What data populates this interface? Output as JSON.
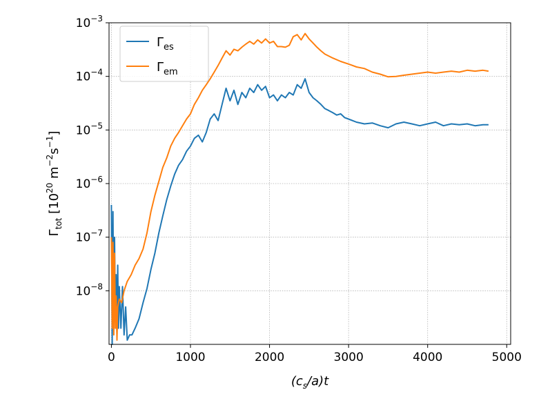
{
  "chart_data": {
    "type": "line",
    "title": "",
    "xlabel": {
      "pre": "(c",
      "sub": "s",
      "post": "/a)t"
    },
    "ylabel": {
      "base": "Γ",
      "sub": "tot",
      "unit_pre": " [10",
      "unit_exp": "20",
      "unit_mid1": " m",
      "unit_exp2": "−2",
      "unit_mid2": "s",
      "unit_exp3": "−1",
      "unit_post": "]"
    },
    "xlim": [
      -30,
      5050
    ],
    "ylim": [
      1e-09,
      0.001
    ],
    "yscale": "log",
    "grid": true,
    "legend_position": "top-left",
    "x_ticks": [
      0,
      1000,
      2000,
      3000,
      4000,
      5000
    ],
    "x_tick_labels": [
      "0",
      "1000",
      "2000",
      "3000",
      "4000",
      "5000"
    ],
    "y_ticks": [
      1e-08,
      1e-07,
      1e-06,
      1e-05,
      0.0001,
      0.001
    ],
    "y_tick_labels": [
      {
        "base": "10",
        "exp": "−8"
      },
      {
        "base": "10",
        "exp": "−7"
      },
      {
        "base": "10",
        "exp": "−6"
      },
      {
        "base": "10",
        "exp": "−5"
      },
      {
        "base": "10",
        "exp": "−4"
      },
      {
        "base": "10",
        "exp": "−3"
      }
    ],
    "series": [
      {
        "name": {
          "base": "Γ",
          "sub": "es"
        },
        "color": "#1f77b4",
        "x": [
          0,
          10,
          20,
          30,
          40,
          50,
          60,
          70,
          80,
          90,
          100,
          120,
          140,
          160,
          180,
          200,
          230,
          260,
          300,
          350,
          400,
          450,
          500,
          550,
          600,
          650,
          700,
          750,
          800,
          850,
          900,
          950,
          1000,
          1050,
          1100,
          1150,
          1200,
          1250,
          1300,
          1350,
          1400,
          1450,
          1500,
          1550,
          1600,
          1650,
          1700,
          1750,
          1800,
          1850,
          1900,
          1950,
          2000,
          2050,
          2100,
          2150,
          2200,
          2250,
          2300,
          2350,
          2400,
          2450,
          2500,
          2550,
          2600,
          2650,
          2700,
          2750,
          2800,
          2850,
          2900,
          2950,
          3000,
          3100,
          3200,
          3300,
          3400,
          3500,
          3600,
          3700,
          3800,
          3900,
          4000,
          4100,
          4200,
          4300,
          4400,
          4500,
          4600,
          4700,
          4770
        ],
        "y": [
          4e-07,
          1e-09,
          3e-07,
          2e-09,
          1e-07,
          3e-09,
          2e-08,
          1.5e-09,
          3e-08,
          2e-09,
          1.2e-08,
          2e-09,
          1.2e-08,
          1.5e-09,
          5e-09,
          1.2e-09,
          1.5e-09,
          1.5e-09,
          2e-09,
          3e-09,
          6e-09,
          1.1e-08,
          2.5e-08,
          5e-08,
          1.2e-07,
          2.5e-07,
          5e-07,
          9e-07,
          1.5e-06,
          2.2e-06,
          2.8e-06,
          4e-06,
          5e-06,
          7e-06,
          8e-06,
          6e-06,
          9e-06,
          1.6e-05,
          2e-05,
          1.5e-05,
          3e-05,
          6e-05,
          3.5e-05,
          5.5e-05,
          3e-05,
          5e-05,
          4e-05,
          6e-05,
          5e-05,
          7e-05,
          5.5e-05,
          6.5e-05,
          4e-05,
          4.5e-05,
          3.5e-05,
          4.5e-05,
          4e-05,
          5e-05,
          4.5e-05,
          7e-05,
          6e-05,
          9e-05,
          5e-05,
          4e-05,
          3.5e-05,
          3e-05,
          2.5e-05,
          2.3e-05,
          2.1e-05,
          1.9e-05,
          2e-05,
          1.7e-05,
          1.6e-05,
          1.4e-05,
          1.3e-05,
          1.35e-05,
          1.2e-05,
          1.1e-05,
          1.3e-05,
          1.4e-05,
          1.3e-05,
          1.2e-05,
          1.3e-05,
          1.4e-05,
          1.2e-05,
          1.3e-05,
          1.25e-05,
          1.3e-05,
          1.2e-05,
          1.25e-05,
          1.25e-05
        ]
      },
      {
        "name": {
          "base": "Γ",
          "sub": "em"
        },
        "color": "#ff7f0e",
        "x": [
          0,
          10,
          20,
          30,
          40,
          50,
          60,
          70,
          80,
          100,
          130,
          160,
          200,
          250,
          300,
          350,
          400,
          450,
          500,
          550,
          600,
          650,
          700,
          750,
          800,
          850,
          900,
          950,
          1000,
          1050,
          1100,
          1150,
          1200,
          1250,
          1300,
          1350,
          1400,
          1450,
          1500,
          1550,
          1600,
          1650,
          1700,
          1750,
          1800,
          1850,
          1900,
          1950,
          2000,
          2050,
          2100,
          2150,
          2200,
          2250,
          2300,
          2350,
          2400,
          2450,
          2500,
          2550,
          2600,
          2650,
          2700,
          2800,
          2900,
          3000,
          3100,
          3200,
          3300,
          3400,
          3500,
          3600,
          3700,
          3800,
          3900,
          4000,
          4100,
          4200,
          4300,
          4400,
          4500,
          4600,
          4700,
          4770
        ],
        "y": [
          1e-07,
          2e-09,
          8e-08,
          1.5e-09,
          5e-08,
          2e-09,
          8e-09,
          1.2e-09,
          5e-09,
          7e-09,
          6e-09,
          1e-08,
          1.5e-08,
          2e-08,
          3e-08,
          4e-08,
          6e-08,
          1.2e-07,
          3e-07,
          6e-07,
          1.1e-06,
          2e-06,
          3e-06,
          5e-06,
          7e-06,
          9e-06,
          1.2e-05,
          1.6e-05,
          2e-05,
          3e-05,
          4e-05,
          5.5e-05,
          7e-05,
          9e-05,
          0.00012,
          0.00016,
          0.00022,
          0.0003,
          0.00025,
          0.00032,
          0.0003,
          0.00035,
          0.0004,
          0.00045,
          0.0004,
          0.00048,
          0.00042,
          0.0005,
          0.00042,
          0.00045,
          0.00036,
          0.00036,
          0.00035,
          0.00038,
          0.00055,
          0.0006,
          0.00048,
          0.00063,
          0.0005,
          0.00042,
          0.00035,
          0.0003,
          0.00026,
          0.00022,
          0.00019,
          0.00017,
          0.00015,
          0.00014,
          0.00012,
          0.00011,
          9.8e-05,
          0.0001,
          0.000105,
          0.00011,
          0.000115,
          0.00012,
          0.000115,
          0.00012,
          0.000125,
          0.00012,
          0.00013,
          0.000125,
          0.00013,
          0.000125
        ]
      }
    ]
  }
}
